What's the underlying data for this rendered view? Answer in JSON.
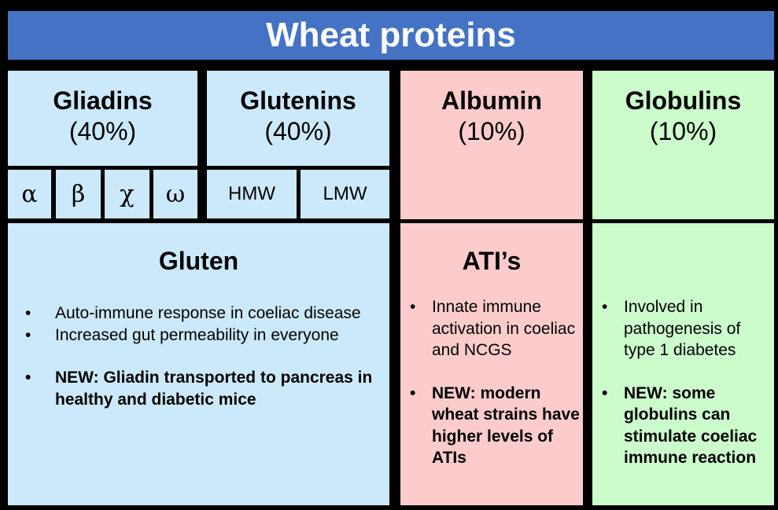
{
  "title": "Wheat proteins",
  "headers": {
    "gliadins": {
      "name": "Gliadins",
      "pct": "(40%)"
    },
    "glutenins": {
      "name": "Glutenins",
      "pct": "(40%)"
    },
    "albumin": {
      "name": "Albumin",
      "pct": "(10%)"
    },
    "globulins": {
      "name": "Globulins",
      "pct": "(10%)"
    }
  },
  "gliadin_types": [
    "α",
    "β",
    "χ",
    "ω"
  ],
  "glutenin_types": [
    "HMW",
    "LMW"
  ],
  "gluten": {
    "title": "Gluten",
    "bullets": [
      "Auto-immune response in coeliac disease",
      "Increased gut permeability in everyone",
      "NEW: Gliadin transported to pancreas in healthy and diabetic mice"
    ]
  },
  "atis": {
    "title": "ATI’s",
    "bullets": [
      "Innate immune activation in coeliac and NCGS",
      "NEW: modern wheat strains have higher levels of ATIs"
    ]
  },
  "globulins_info": {
    "bullets": [
      "Involved in pathogenesis of type 1 diabetes",
      "NEW: some globulins can stimulate coeliac immune reaction"
    ]
  },
  "colors": {
    "title_bg": "#4472c4",
    "gluten_bg": "#cce9fb",
    "albumin_bg": "#fccccc",
    "globulin_bg": "#ccfccc"
  }
}
